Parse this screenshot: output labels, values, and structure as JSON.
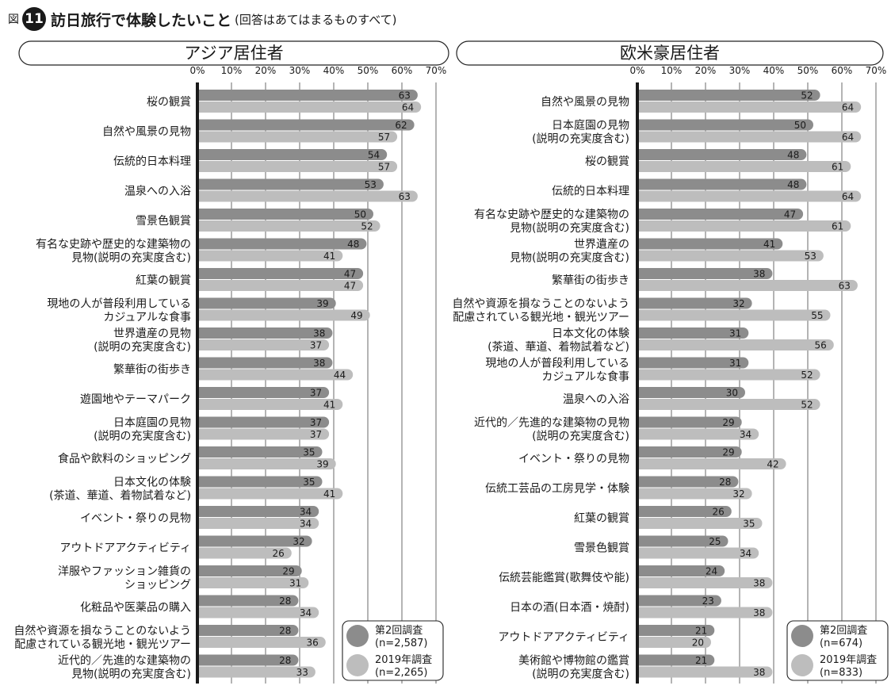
{
  "figure": {
    "prefix": "図",
    "number": "11",
    "title": "訪日旅行で体験したいこと",
    "subtitle": "(回答はあてはまるものすべて)"
  },
  "colors": {
    "series_1": "#8c8c8c",
    "series_2": "#bdbdbd",
    "axis": "#1a1a1a",
    "grid": "#444444"
  },
  "chart_data": [
    {
      "type": "bar",
      "orientation": "horizontal",
      "title": "アジア居住者",
      "xlim": [
        0,
        70
      ],
      "x_ticks": [
        "0%",
        "10%",
        "20%",
        "30%",
        "40%",
        "50%",
        "60%",
        "70%"
      ],
      "grid": true,
      "legend_position": "bottom-right",
      "categories": [
        [
          "桜の観賞"
        ],
        [
          "自然や風景の見物"
        ],
        [
          "伝統的日本料理"
        ],
        [
          "温泉への入浴"
        ],
        [
          "雪景色観賞"
        ],
        [
          "有名な史跡や歴史的な建築物の",
          "見物(説明の充実度含む)"
        ],
        [
          "紅葉の観賞"
        ],
        [
          "現地の人が普段利用している",
          "カジュアルな食事"
        ],
        [
          "世界遺産の見物",
          "(説明の充実度含む)"
        ],
        [
          "繁華街の街歩き"
        ],
        [
          "遊園地やテーマパーク"
        ],
        [
          "日本庭園の見物",
          "(説明の充実度含む)"
        ],
        [
          "食品や飲料のショッピング"
        ],
        [
          "日本文化の体験",
          "(茶道、華道、着物試着など)"
        ],
        [
          "イベント・祭りの見物"
        ],
        [
          "アウトドアアクティビティ"
        ],
        [
          "洋服やファッション雑貨の",
          "ショッピング"
        ],
        [
          "化粧品や医薬品の購入"
        ],
        [
          "自然や資源を損なうことのないよう",
          "配慮されている観光地・観光ツアー"
        ],
        [
          "近代的／先進的な建築物の",
          "見物(説明の充実度含む)"
        ]
      ],
      "series": [
        {
          "name": [
            "第2回調査",
            "(n=2,587)"
          ],
          "values": [
            63,
            62,
            54,
            53,
            50,
            48,
            47,
            39,
            38,
            38,
            37,
            37,
            35,
            35,
            34,
            32,
            29,
            28,
            28,
            28
          ]
        },
        {
          "name": [
            "2019年調査",
            "(n=2,265)"
          ],
          "values": [
            64,
            57,
            57,
            63,
            52,
            41,
            47,
            49,
            37,
            44,
            41,
            37,
            39,
            41,
            34,
            26,
            31,
            34,
            36,
            33
          ]
        }
      ]
    },
    {
      "type": "bar",
      "orientation": "horizontal",
      "title": "欧米豪居住者",
      "xlim": [
        0,
        70
      ],
      "x_ticks": [
        "0%",
        "10%",
        "20%",
        "30%",
        "40%",
        "50%",
        "60%",
        "70%"
      ],
      "grid": true,
      "legend_position": "bottom-right",
      "categories": [
        [
          "自然や風景の見物"
        ],
        [
          "日本庭園の見物",
          "(説明の充実度含む)"
        ],
        [
          "桜の観賞"
        ],
        [
          "伝統的日本料理"
        ],
        [
          "有名な史跡や歴史的な建築物の",
          "見物(説明の充実度含む)"
        ],
        [
          "世界遺産の",
          "見物(説明の充実度含む)"
        ],
        [
          "繁華街の街歩き"
        ],
        [
          "自然や資源を損なうことのないよう",
          "配慮されている観光地・観光ツアー"
        ],
        [
          "日本文化の体験",
          "(茶道、華道、着物試着など)"
        ],
        [
          "現地の人が普段利用している",
          "カジュアルな食事"
        ],
        [
          "温泉への入浴"
        ],
        [
          "近代的／先進的な建築物の見物",
          "(説明の充実度含む)"
        ],
        [
          "イベント・祭りの見物"
        ],
        [
          "伝統工芸品の工房見学・体験"
        ],
        [
          "紅葉の観賞"
        ],
        [
          "雪景色観賞"
        ],
        [
          "伝統芸能鑑賞(歌舞伎や能)"
        ],
        [
          "日本の酒(日本酒・焼酎)"
        ],
        [
          "アウトドアアクティビティ"
        ],
        [
          "美術館や博物館の鑑賞",
          "(説明の充実度含む)"
        ]
      ],
      "series": [
        {
          "name": [
            "第2回調査",
            "(n=674)"
          ],
          "values": [
            52,
            50,
            48,
            48,
            47,
            41,
            38,
            32,
            31,
            31,
            30,
            29,
            29,
            28,
            26,
            25,
            24,
            23,
            21,
            21
          ]
        },
        {
          "name": [
            "2019年調査",
            "(n=833)"
          ],
          "values": [
            64,
            64,
            61,
            64,
            61,
            53,
            63,
            55,
            56,
            52,
            52,
            34,
            42,
            32,
            35,
            34,
            38,
            38,
            20,
            38
          ]
        }
      ]
    }
  ]
}
